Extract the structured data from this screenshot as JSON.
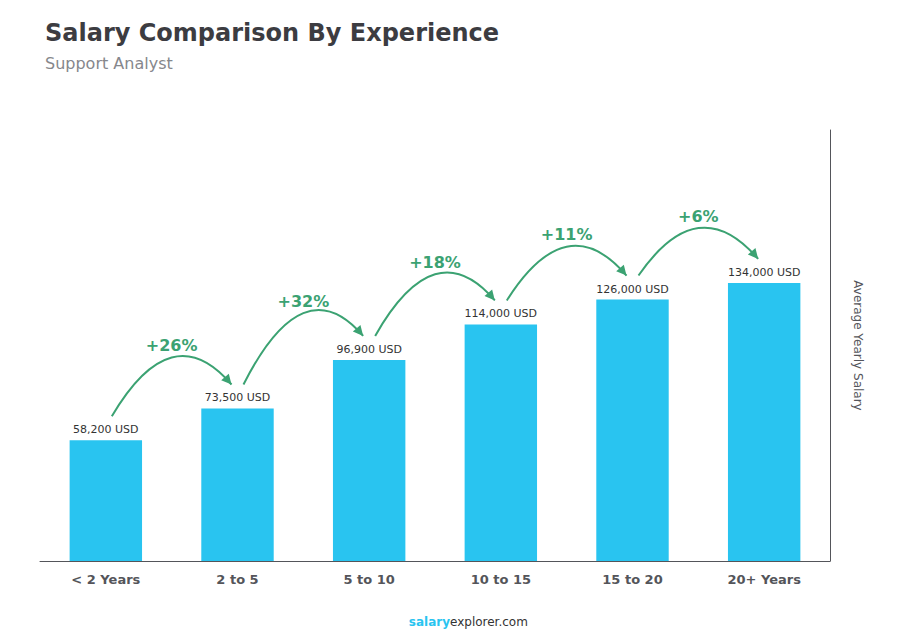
{
  "chart_data": {
    "type": "bar",
    "title": "Salary Comparison By Experience",
    "subtitle": "Support Analyst",
    "ylabel": "Average Yearly Salary",
    "footer": [
      "salary",
      "explorer.com"
    ],
    "categories": [
      "< 2 Years",
      "2 to 5",
      "5 to 10",
      "10 to 15",
      "15 to 20",
      "20+ Years"
    ],
    "values": [
      58200,
      73500,
      96900,
      114000,
      126000,
      134000
    ],
    "value_labels": [
      "58,200 USD",
      "73,500 USD",
      "96,900 USD",
      "114,000 USD",
      "126,000 USD",
      "134,000 USD"
    ],
    "data_labels": true,
    "annotations": [
      "+26%",
      "+32%",
      "+18%",
      "+11%",
      "+6%"
    ],
    "color": "#29c4f0",
    "ylim": [
      0,
      207700
    ],
    "grid": false,
    "tick_labels": "x"
  }
}
